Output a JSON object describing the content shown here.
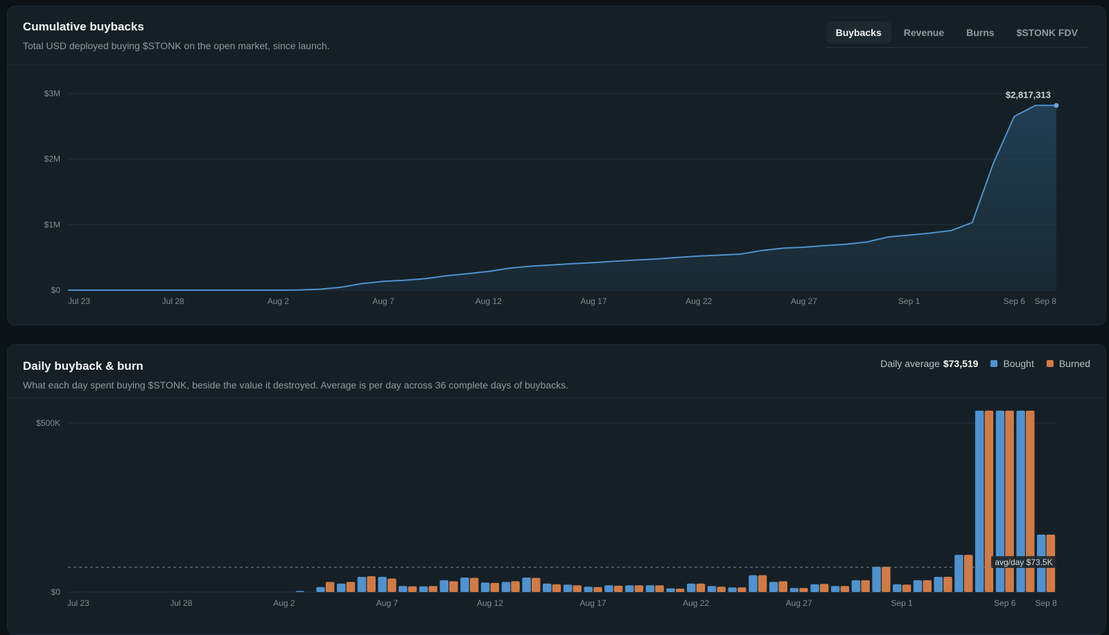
{
  "cumulative": {
    "title": "Cumulative buybacks",
    "subtitle": "Total USD deployed buying $STONK on the open market, since launch.",
    "tabs": [
      {
        "label": "Buybacks",
        "active": true
      },
      {
        "label": "Revenue",
        "active": false
      },
      {
        "label": "Burns",
        "active": false
      },
      {
        "label": "$STONK FDV",
        "active": false
      }
    ],
    "last_value_label": "$2,817,313"
  },
  "daily": {
    "title": "Daily buyback & burn",
    "subtitle": "What each day spent buying $STONK, beside the value it destroyed. Average is per day across 36 complete days of buybacks.",
    "avg_label": "Daily average",
    "avg_value": "$73,519",
    "legend": [
      {
        "label": "Bought",
        "color": "#4e92d0"
      },
      {
        "label": "Burned",
        "color": "#d27a45"
      }
    ],
    "avg_line_label": "avg/day $73.5K"
  },
  "colors": {
    "line": "#4e92d0",
    "bought": "#4e92d0",
    "burned": "#d27a45",
    "grid": "#233139",
    "tick": "#7e8b94"
  },
  "chart_data": [
    {
      "type": "area",
      "title": "Cumulative buybacks",
      "x": [
        "Jul 23",
        "Jul 24",
        "Jul 25",
        "Jul 26",
        "Jul 27",
        "Jul 28",
        "Jul 29",
        "Jul 30",
        "Jul 31",
        "Aug 1",
        "Aug 2",
        "Aug 3",
        "Aug 4",
        "Aug 5",
        "Aug 6",
        "Aug 7",
        "Aug 8",
        "Aug 9",
        "Aug 10",
        "Aug 11",
        "Aug 12",
        "Aug 13",
        "Aug 14",
        "Aug 15",
        "Aug 16",
        "Aug 17",
        "Aug 18",
        "Aug 19",
        "Aug 20",
        "Aug 21",
        "Aug 22",
        "Aug 23",
        "Aug 24",
        "Aug 25",
        "Aug 26",
        "Aug 27",
        "Aug 28",
        "Aug 29",
        "Aug 30",
        "Aug 31",
        "Sep 1",
        "Sep 2",
        "Sep 3",
        "Sep 4",
        "Sep 5",
        "Sep 6",
        "Sep 7",
        "Sep 8"
      ],
      "series": [
        {
          "values": [
            0,
            0,
            0,
            0,
            0,
            0,
            0,
            0,
            0,
            0,
            0,
            3000,
            15000,
            45000,
            100000,
            135000,
            150000,
            175000,
            220000,
            250000,
            285000,
            335000,
            365000,
            385000,
            405000,
            420000,
            440000,
            460000,
            475000,
            500000,
            520000,
            535000,
            550000,
            605000,
            640000,
            655000,
            680000,
            700000,
            735000,
            810000,
            840000,
            870000,
            910000,
            1030000,
            1930000,
            2650000,
            2817313,
            2817313
          ]
        }
      ],
      "x_ticks": [
        "Jul 23",
        "Jul 28",
        "Aug 2",
        "Aug 7",
        "Aug 12",
        "Aug 17",
        "Aug 22",
        "Aug 27",
        "Sep 1",
        "Sep 6",
        "Sep 8"
      ],
      "y_ticks": [
        "$0",
        "$1M",
        "$2M",
        "$3M"
      ],
      "ylim": [
        0,
        3000000
      ],
      "annotation": "$2,817,313",
      "grid": true
    },
    {
      "type": "bar",
      "title": "Daily buyback & burn",
      "categories": [
        "Jul 23",
        "Jul 24",
        "Jul 25",
        "Jul 26",
        "Jul 27",
        "Jul 28",
        "Jul 29",
        "Jul 30",
        "Jul 31",
        "Aug 1",
        "Aug 2",
        "Aug 3",
        "Aug 4",
        "Aug 5",
        "Aug 6",
        "Aug 7",
        "Aug 8",
        "Aug 9",
        "Aug 10",
        "Aug 11",
        "Aug 12",
        "Aug 13",
        "Aug 14",
        "Aug 15",
        "Aug 16",
        "Aug 17",
        "Aug 18",
        "Aug 19",
        "Aug 20",
        "Aug 21",
        "Aug 22",
        "Aug 23",
        "Aug 24",
        "Aug 25",
        "Aug 26",
        "Aug 27",
        "Aug 28",
        "Aug 29",
        "Aug 30",
        "Aug 31",
        "Sep 1",
        "Sep 2",
        "Sep 3",
        "Sep 4",
        "Sep 5",
        "Sep 6",
        "Sep 7",
        "Sep 8"
      ],
      "series": [
        {
          "name": "Bought",
          "values": [
            0,
            0,
            0,
            0,
            0,
            0,
            0,
            0,
            0,
            0,
            0,
            3000,
            15000,
            25000,
            45000,
            45000,
            18000,
            17000,
            35000,
            43000,
            28000,
            30000,
            43000,
            25000,
            22000,
            16000,
            20000,
            20000,
            20000,
            11000,
            25000,
            18000,
            14000,
            50000,
            30000,
            12000,
            23000,
            18000,
            35000,
            75000,
            23000,
            35000,
            45000,
            110000,
            540000,
            540000,
            540000,
            170000
          ]
        },
        {
          "name": "Burned",
          "values": [
            0,
            0,
            0,
            0,
            0,
            0,
            0,
            0,
            0,
            0,
            0,
            0,
            30000,
            30000,
            47000,
            40000,
            17000,
            18000,
            32000,
            42000,
            27000,
            32000,
            42000,
            23000,
            20000,
            15000,
            19000,
            20000,
            20000,
            10000,
            25000,
            16000,
            14000,
            50000,
            32000,
            12000,
            24000,
            18000,
            35000,
            75000,
            22000,
            35000,
            45000,
            110000,
            540000,
            540000,
            540000,
            170000
          ]
        }
      ],
      "x_ticks": [
        "Jul 23",
        "Jul 28",
        "Aug 2",
        "Aug 7",
        "Aug 12",
        "Aug 17",
        "Aug 22",
        "Aug 27",
        "Sep 1",
        "Sep 6",
        "Sep 8"
      ],
      "y_ticks": [
        "$0",
        "$500K"
      ],
      "ylim": [
        0,
        550000
      ],
      "average_line": 73519,
      "average_label": "avg/day $73.5K",
      "legend_placement": "top-right",
      "grid": true
    }
  ]
}
